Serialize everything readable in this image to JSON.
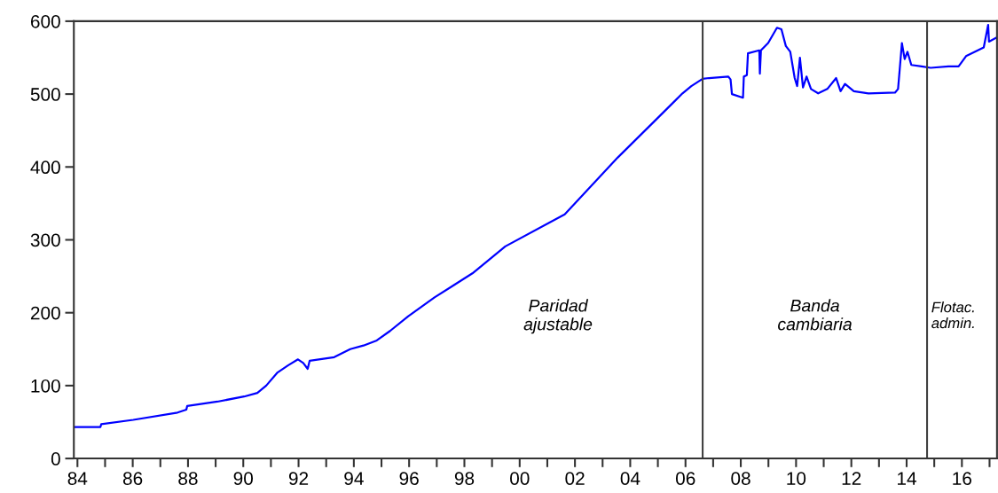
{
  "chart_data": {
    "type": "line",
    "x": [
      1983.87,
      1984.83,
      1984.86,
      1986.02,
      1987.62,
      1987.94,
      1987.97,
      1989.06,
      1990.03,
      1990.51,
      1990.83,
      1991.24,
      1991.63,
      1991.98,
      1992.17,
      1992.33,
      1992.4,
      1993.29,
      1993.87,
      1994.35,
      1994.83,
      1995.31,
      1995.96,
      1996.92,
      1998.29,
      1999.48,
      2001.63,
      2003.55,
      2004.83,
      2005.89,
      2006.21,
      2006.62,
      2006.85,
      2007.55,
      2007.63,
      2007.68,
      2008.08,
      2008.11,
      2008.22,
      2008.26,
      2008.67,
      2008.69,
      2008.73,
      2008.99,
      2009.31,
      2009.47,
      2009.63,
      2009.79,
      2009.95,
      2010.04,
      2010.14,
      2010.25,
      2010.38,
      2010.54,
      2010.8,
      2011.13,
      2011.45,
      2011.61,
      2011.77,
      2012.09,
      2012.62,
      2013.58,
      2013.69,
      2013.83,
      2013.93,
      2014.03,
      2014.17,
      2014.54,
      2014.87,
      2015.51,
      2015.88,
      2016.15,
      2016.79,
      2016.95,
      2016.98,
      2017.27
    ],
    "series": [
      {
        "color": "#0000ff",
        "values": [
          43,
          43,
          47,
          53,
          63,
          67,
          72,
          78,
          85,
          90,
          100,
          118,
          128,
          136,
          131,
          123,
          134,
          139,
          150,
          155,
          162,
          175,
          195,
          221,
          254,
          291,
          335,
          413,
          461,
          501,
          511,
          521,
          522,
          524,
          520,
          500,
          495,
          524,
          526,
          556,
          560,
          528,
          560,
          570,
          591,
          589,
          566,
          558,
          522,
          511,
          550,
          509,
          524,
          507,
          501,
          507,
          522,
          504,
          514,
          504,
          501,
          502,
          507,
          570,
          548,
          558,
          540,
          538,
          536,
          538,
          538,
          552,
          564,
          595,
          572,
          578
        ]
      }
    ],
    "xlim": [
      1983.87,
      2017.27
    ],
    "xticks": [
      {
        "value": 1984,
        "label": "84"
      },
      {
        "value": 1985,
        "label": null
      },
      {
        "value": 1986,
        "label": "86"
      },
      {
        "value": 1987,
        "label": null
      },
      {
        "value": 1988,
        "label": "88"
      },
      {
        "value": 1989,
        "label": null
      },
      {
        "value": 1990,
        "label": "90"
      },
      {
        "value": 1991,
        "label": null
      },
      {
        "value": 1992,
        "label": "92"
      },
      {
        "value": 1993,
        "label": null
      },
      {
        "value": 1994,
        "label": "94"
      },
      {
        "value": 1995,
        "label": null
      },
      {
        "value": 1996,
        "label": "96"
      },
      {
        "value": 1997,
        "label": null
      },
      {
        "value": 1998,
        "label": "98"
      },
      {
        "value": 1999,
        "label": null
      },
      {
        "value": 2000,
        "label": "00"
      },
      {
        "value": 2001,
        "label": null
      },
      {
        "value": 2002,
        "label": "02"
      },
      {
        "value": 2003,
        "label": null
      },
      {
        "value": 2004,
        "label": "04"
      },
      {
        "value": 2005,
        "label": null
      },
      {
        "value": 2006,
        "label": "06"
      },
      {
        "value": 2007,
        "label": null
      },
      {
        "value": 2008,
        "label": "08"
      },
      {
        "value": 2009,
        "label": null
      },
      {
        "value": 2010,
        "label": "10"
      },
      {
        "value": 2011,
        "label": null
      },
      {
        "value": 2012,
        "label": "12"
      },
      {
        "value": 2013,
        "label": null
      },
      {
        "value": 2014,
        "label": "14"
      },
      {
        "value": 2015,
        "label": null
      },
      {
        "value": 2016,
        "label": "16"
      },
      {
        "value": 2017,
        "label": null
      }
    ],
    "ylim": [
      0,
      600
    ],
    "yticks": [
      0,
      100,
      200,
      300,
      400,
      500,
      600
    ],
    "ref_lines": [
      {
        "axis": "x",
        "value": 2006.62,
        "color": "#404040"
      },
      {
        "axis": "x",
        "value": 2014.74,
        "color": "#404040"
      }
    ],
    "annotations": [
      "Paridad\najustable",
      "Banda\ncambiaria",
      "Flotac.\nadmin."
    ],
    "grid": false,
    "legend": false,
    "marker": "none",
    "line_style": "solid"
  }
}
